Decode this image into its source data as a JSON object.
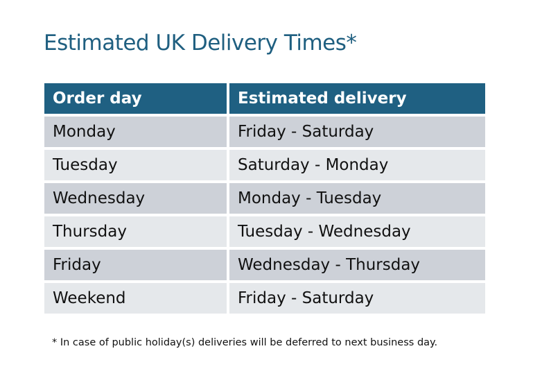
{
  "title": "Estimated UK Delivery Times*",
  "table": {
    "headers": [
      "Order day",
      "Estimated delivery"
    ],
    "rows": [
      [
        "Monday",
        "Friday - Saturday"
      ],
      [
        "Tuesday",
        "Saturday - Monday"
      ],
      [
        "Wednesday",
        "Monday - Tuesday"
      ],
      [
        "Thursday",
        "Tuesday - Wednesday"
      ],
      [
        "Friday",
        "Wednesday - Thursday"
      ],
      [
        "Weekend",
        "Friday - Saturday"
      ]
    ]
  },
  "footnote": "* In case of public holiday(s) deliveries will be deferred to next business day.",
  "colors": {
    "header": "#1f6082",
    "title": "#1f5f80",
    "row_dark": "#cdd1d8",
    "row_light": "#e5e8eb"
  }
}
